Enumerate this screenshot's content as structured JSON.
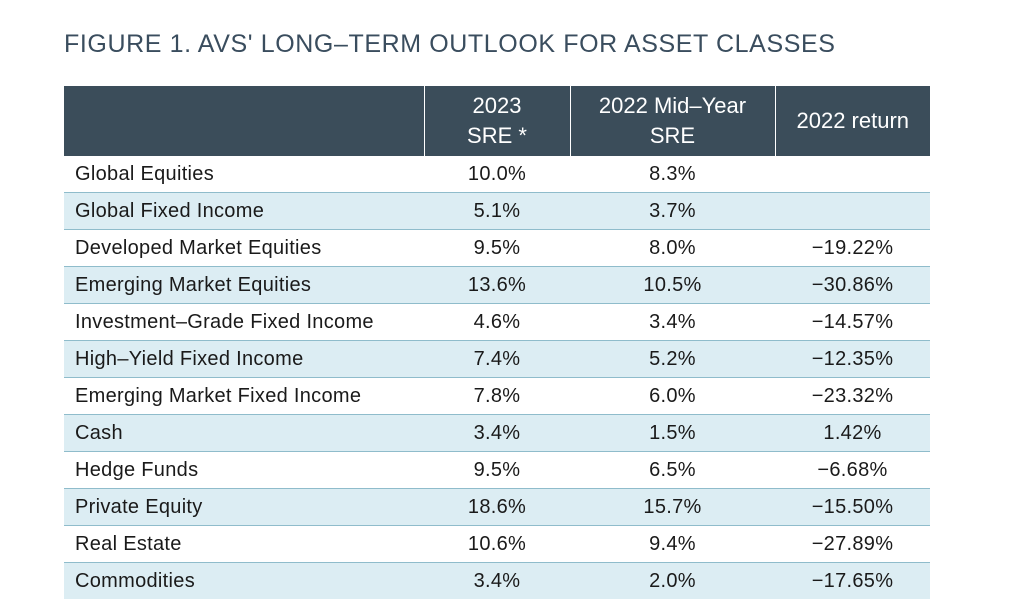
{
  "title": "FIGURE 1. AVS' LONG–TERM OUTLOOK FOR ASSET CLASSES",
  "table": {
    "headers": [
      "",
      [
        "2023",
        "SRE *"
      ],
      [
        "2022 Mid–Year",
        "SRE"
      ],
      [
        "2022 return"
      ]
    ],
    "rows": [
      [
        "Global Equities",
        "10.0%",
        "8.3%",
        ""
      ],
      [
        "Global Fixed Income",
        "5.1%",
        "3.7%",
        ""
      ],
      [
        "Developed Market Equities",
        "9.5%",
        "8.0%",
        "−19.22%"
      ],
      [
        "Emerging Market Equities",
        "13.6%",
        "10.5%",
        "−30.86%"
      ],
      [
        "Investment–Grade Fixed Income",
        "4.6%",
        "3.4%",
        "−14.57%"
      ],
      [
        "High–Yield Fixed Income",
        "7.4%",
        "5.2%",
        "−12.35%"
      ],
      [
        "Emerging Market Fixed Income",
        "7.8%",
        "6.0%",
        "−23.32%"
      ],
      [
        "Cash",
        "3.4%",
        "1.5%",
        "1.42%"
      ],
      [
        "Hedge Funds",
        "9.5%",
        "6.5%",
        "−6.68%"
      ],
      [
        "Private Equity",
        "18.6%",
        "15.7%",
        "−15.50%"
      ],
      [
        "Real Estate",
        "10.6%",
        "9.4%",
        "−27.89%"
      ],
      [
        "Commodities",
        "3.4%",
        "2.0%",
        "−17.65%"
      ]
    ]
  }
}
